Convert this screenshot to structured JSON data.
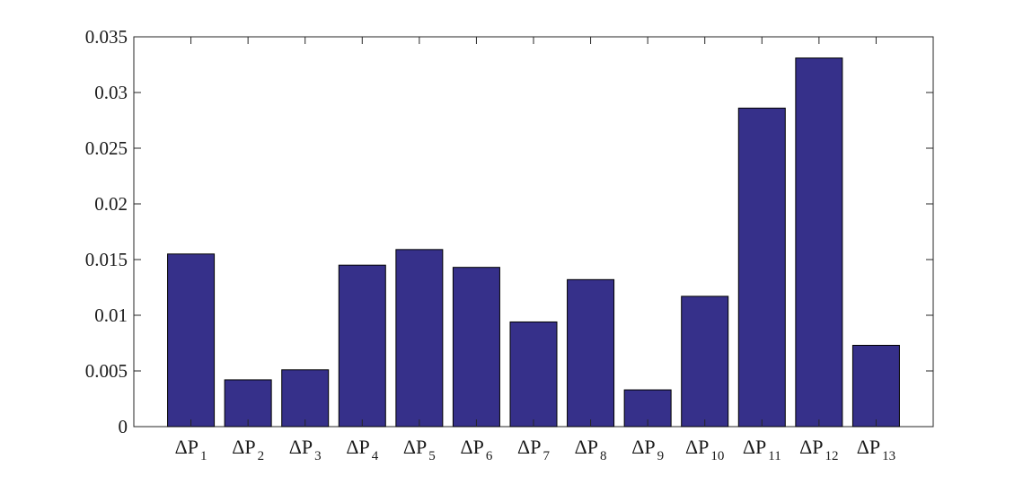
{
  "chart_data": {
    "type": "bar",
    "title": "",
    "xlabel": "",
    "ylabel": "",
    "categories": [
      {
        "base": "ΔP",
        "sub": "1"
      },
      {
        "base": "ΔP",
        "sub": "2"
      },
      {
        "base": "ΔP",
        "sub": "3"
      },
      {
        "base": "ΔP",
        "sub": "4"
      },
      {
        "base": "ΔP",
        "sub": "5"
      },
      {
        "base": "ΔP",
        "sub": "6"
      },
      {
        "base": "ΔP",
        "sub": "7"
      },
      {
        "base": "ΔP",
        "sub": "8"
      },
      {
        "base": "ΔP",
        "sub": "9"
      },
      {
        "base": "ΔP",
        "sub": "10"
      },
      {
        "base": "ΔP",
        "sub": "11"
      },
      {
        "base": "ΔP",
        "sub": "12"
      },
      {
        "base": "ΔP",
        "sub": "13"
      }
    ],
    "values": [
      0.0155,
      0.0042,
      0.0051,
      0.0145,
      0.0159,
      0.0143,
      0.0094,
      0.0132,
      0.0033,
      0.0117,
      0.0286,
      0.0331,
      0.0073
    ],
    "ylim": [
      0,
      0.035
    ],
    "yticks": [
      "0",
      "0.005",
      "0.01",
      "0.015",
      "0.02",
      "0.025",
      "0.03",
      "0.035"
    ],
    "bar_color": "#36308a",
    "grid": false,
    "legend": "none"
  }
}
